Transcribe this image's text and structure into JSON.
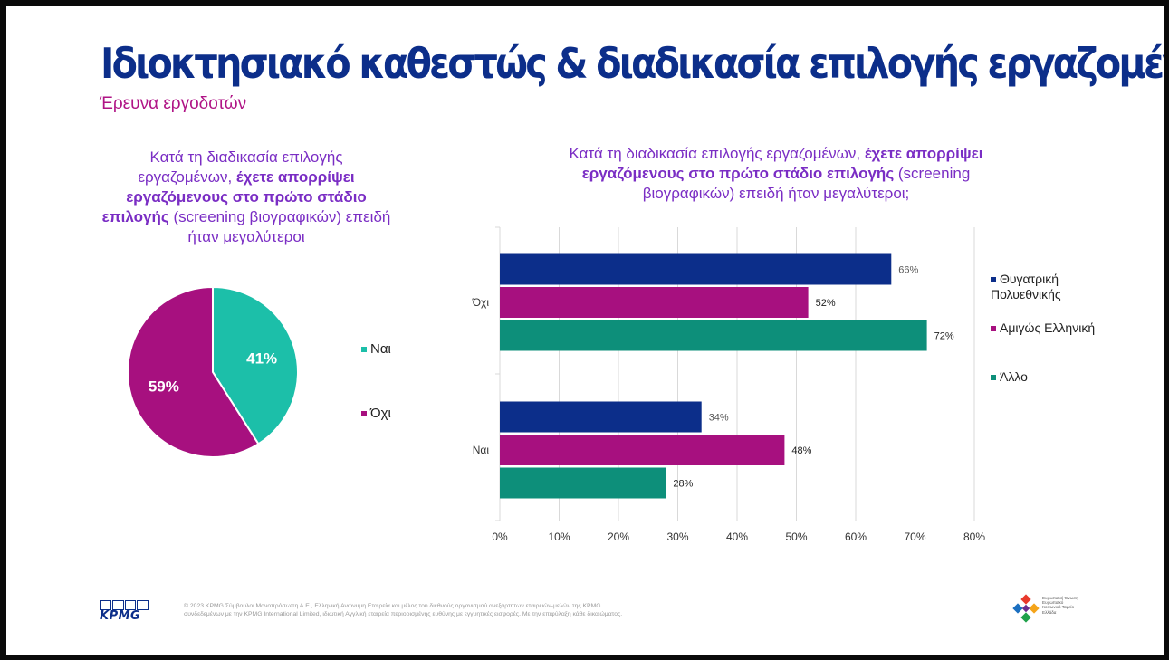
{
  "header": {
    "title": "Ιδιοκτησιακό καθεστώς & διαδικασία επιλογής εργαζομένων",
    "subtitle": "Έρευνα εργοδοτών"
  },
  "pie_question": {
    "part1": "Κατά τη διαδικασία επιλογής εργαζομένων, ",
    "bold": "έχετε απορρίψει εργαζόμενους στο πρώτο στάδιο επιλογής",
    "part2": " (screening βιογραφικών) επειδή ήταν μεγαλύτεροι"
  },
  "bar_question": {
    "part1": "Κατά τη διαδικασία επιλογής εργαζομένων, ",
    "bold": "έχετε απορρίψει εργαζόμενους στο πρώτο στάδιο επιλογής",
    "part2": " (screening βιογραφικών) επειδή ήταν μεγαλύτεροι;"
  },
  "chart_data": [
    {
      "type": "pie",
      "slices": [
        {
          "label": "Ναι",
          "value": 41,
          "value_label": "41%",
          "color": "#1cbfa9"
        },
        {
          "label": "Όχι",
          "value": 59,
          "value_label": "59%",
          "color": "#a7107f"
        }
      ],
      "legend_position": "right"
    },
    {
      "type": "bar",
      "orientation": "horizontal",
      "categories": [
        "Όχι",
        "Ναι"
      ],
      "series": [
        {
          "name": "Θυγατρική Πολυεθνικής",
          "values": [
            66,
            34
          ],
          "value_labels": [
            "66%",
            "34%"
          ],
          "color": "#0c2e8a"
        },
        {
          "name": "Αμιγώς Ελληνική",
          "values": [
            52,
            48
          ],
          "value_labels": [
            "52%",
            "48%"
          ],
          "color": "#a7107f"
        },
        {
          "name": "Άλλο",
          "values": [
            72,
            28
          ],
          "value_labels": [
            "72%",
            "28%"
          ],
          "color": "#0d8f7a"
        }
      ],
      "xlim": [
        0,
        80
      ],
      "xticks": [
        "0%",
        "10%",
        "20%",
        "30%",
        "40%",
        "50%",
        "60%",
        "70%",
        "80%"
      ],
      "grid": true,
      "legend_position": "right"
    }
  ],
  "footer": {
    "logo_text": "KPMG",
    "copyright": "© 2023 KPMG Σύμβουλοι Μονοπρόσωπη Α.Ε., Ελληνική Ανώνυμη Εταιρεία και μέλος του διεθνούς οργανισμού ανεξάρτητων εταιρειών-μελών της KPMG συνδεδεμένων με την KPMG International Limited, ιδιωτική Αγγλική εταιρεία περιορισμένης ευθύνης με εγγυητικές εισφορές. Με την επιφύλαξη κάθε δικαιώματος.",
    "partner_text": "Ευρωπαϊκή Ένωση Ευρωπαϊκό Κοινωνικό Ταμείο Ελλάδα"
  }
}
